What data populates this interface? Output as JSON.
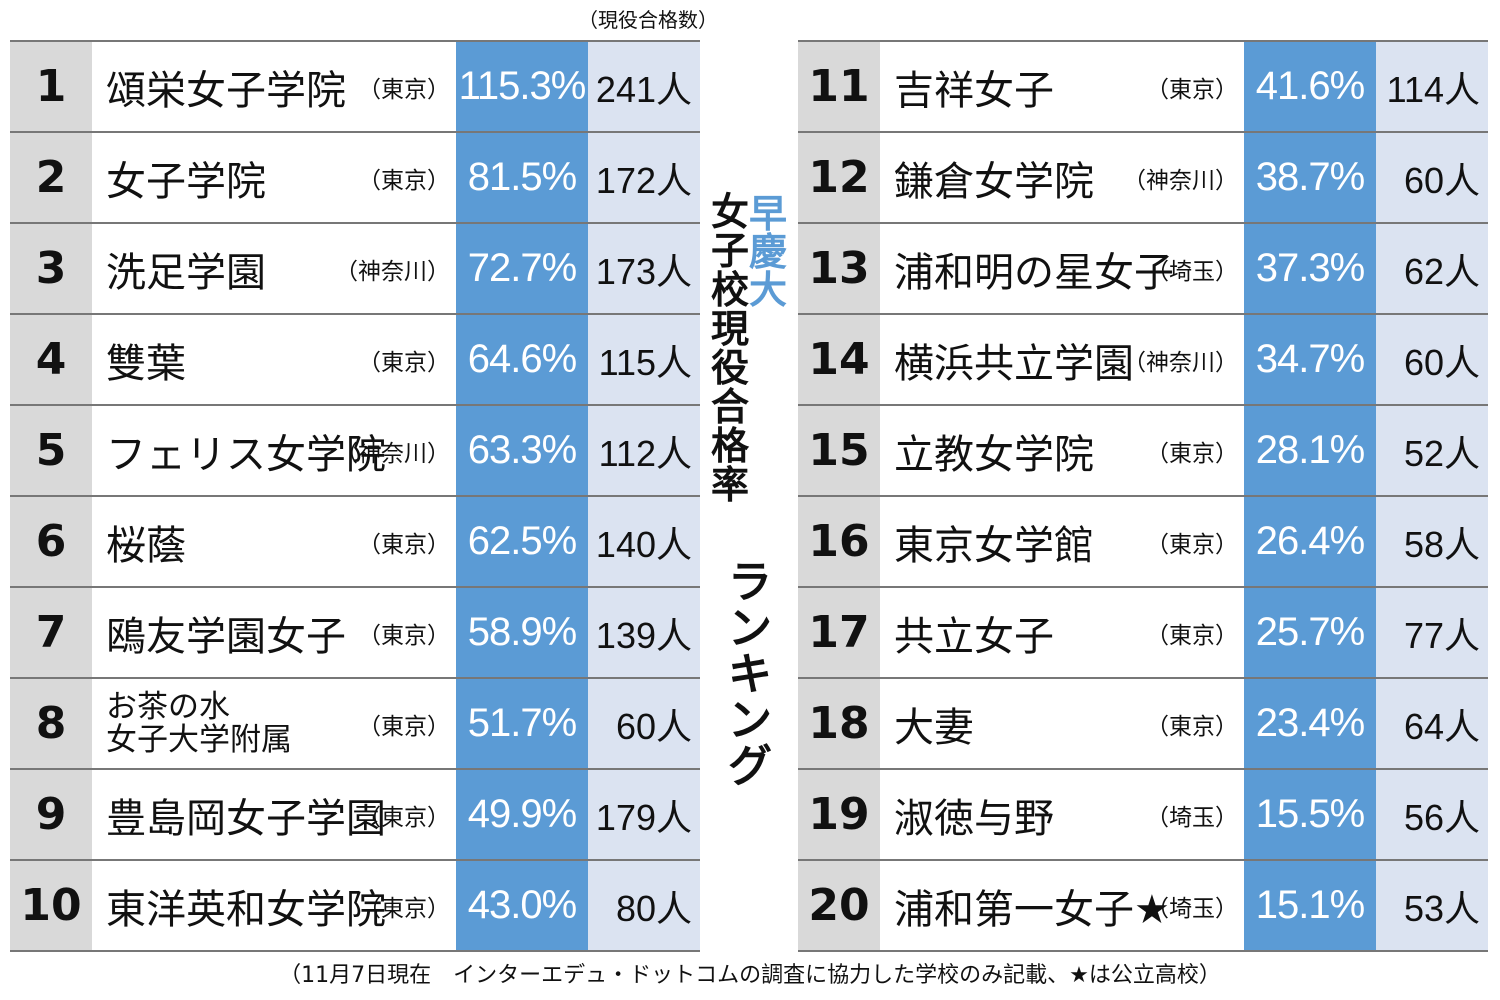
{
  "header": {
    "count_label": "（現役合格数）"
  },
  "title": {
    "accent": [
      "早",
      "慶",
      "大"
    ],
    "main": [
      "女",
      "子",
      "校",
      "現",
      "役",
      "合",
      "格",
      "率"
    ],
    "sub": [
      "ラ",
      "ン",
      "キ",
      "ン",
      "グ"
    ]
  },
  "left": [
    {
      "rank": "1",
      "name": "頌栄女子学院",
      "pref": "（東京）",
      "rate": "115.3%",
      "count": "241人"
    },
    {
      "rank": "2",
      "name": "女子学院",
      "pref": "（東京）",
      "rate": "81.5%",
      "count": "172人"
    },
    {
      "rank": "3",
      "name": "洗足学園",
      "pref": "（神奈川）",
      "rate": "72.7%",
      "count": "173人"
    },
    {
      "rank": "4",
      "name": "雙葉",
      "pref": "（東京）",
      "rate": "64.6%",
      "count": "115人"
    },
    {
      "rank": "5",
      "name": "フェリス女学院",
      "pref": "（神奈川）",
      "rate": "63.3%",
      "count": "112人"
    },
    {
      "rank": "6",
      "name": "桜蔭",
      "pref": "（東京）",
      "rate": "62.5%",
      "count": "140人"
    },
    {
      "rank": "7",
      "name": "鴎友学園女子",
      "pref": "（東京）",
      "rate": "58.9%",
      "count": "139人"
    },
    {
      "rank": "8",
      "name_line1": "お茶の水",
      "name_line2": "女子大学附属",
      "pref": "（東京）",
      "rate": "51.7%",
      "count": "60人"
    },
    {
      "rank": "9",
      "name": "豊島岡女子学園",
      "pref": "（東京）",
      "rate": "49.9%",
      "count": "179人"
    },
    {
      "rank": "10",
      "name": "東洋英和女学院",
      "pref": "（東京）",
      "rate": "43.0%",
      "count": "80人"
    }
  ],
  "right": [
    {
      "rank": "11",
      "name": "吉祥女子",
      "pref": "（東京）",
      "rate": "41.6%",
      "count": "114人"
    },
    {
      "rank": "12",
      "name": "鎌倉女学院",
      "pref": "（神奈川）",
      "rate": "38.7%",
      "count": "60人"
    },
    {
      "rank": "13",
      "name": "浦和明の星女子",
      "pref": "（埼玉）",
      "rate": "37.3%",
      "count": "62人"
    },
    {
      "rank": "14",
      "name": "横浜共立学園",
      "pref": "（神奈川）",
      "rate": "34.7%",
      "count": "60人"
    },
    {
      "rank": "15",
      "name": "立教女学院",
      "pref": "（東京）",
      "rate": "28.1%",
      "count": "52人"
    },
    {
      "rank": "16",
      "name": "東京女学館",
      "pref": "（東京）",
      "rate": "26.4%",
      "count": "58人"
    },
    {
      "rank": "17",
      "name": "共立女子",
      "pref": "（東京）",
      "rate": "25.7%",
      "count": "77人"
    },
    {
      "rank": "18",
      "name": "大妻",
      "pref": "（東京）",
      "rate": "23.4%",
      "count": "64人"
    },
    {
      "rank": "19",
      "name": "淑徳与野",
      "pref": "（埼玉）",
      "rate": "15.5%",
      "count": "56人"
    },
    {
      "rank": "20",
      "name": "浦和第一女子★",
      "pref": "（埼玉）",
      "rate": "15.1%",
      "count": "53人"
    }
  ],
  "footnote": "（11月7日現在　インターエデュ・ドットコムの調査に協力した学校のみ記載、★は公立高校）",
  "colors": {
    "rank_bg": "#d9d9d9",
    "rate_bg": "#5b9bd5",
    "count_bg": "#dbe3f1",
    "accent": "#5b9bd5"
  }
}
